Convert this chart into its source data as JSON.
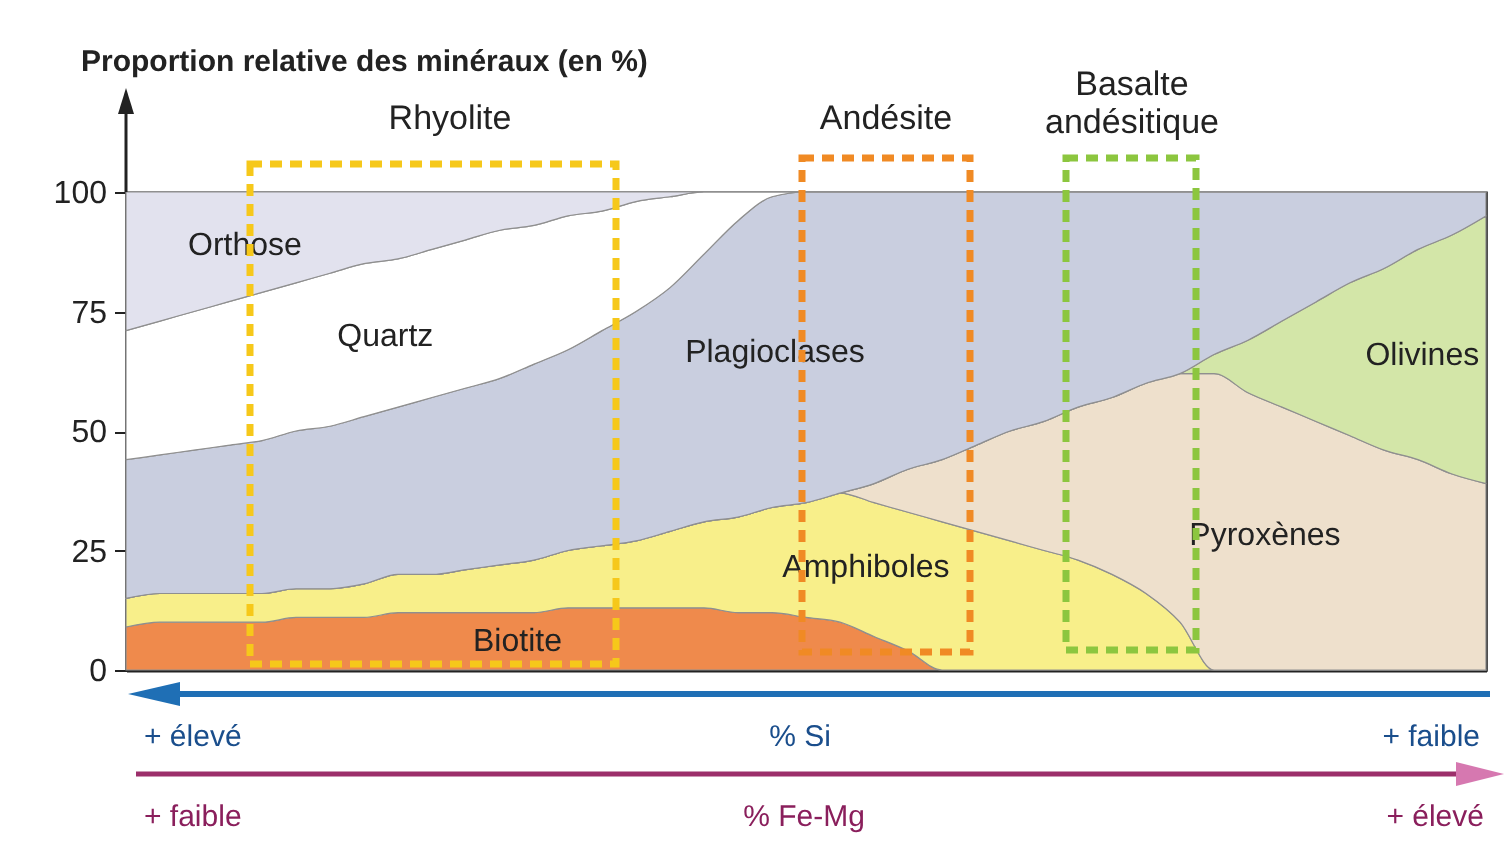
{
  "chart_data": {
    "type": "area",
    "stacked": true,
    "ylabel": "Proportion relative des minéraux (en %)",
    "categories": [
      null,
      null,
      null,
      null,
      null,
      null,
      null,
      null,
      null,
      null,
      null,
      null,
      null,
      null,
      null,
      null,
      null,
      null,
      null,
      null,
      null,
      null,
      null,
      null,
      null,
      null,
      null,
      null,
      null,
      null,
      null,
      null,
      null,
      null,
      null,
      null,
      null,
      null,
      null,
      null,
      null
    ],
    "series": [
      {
        "name": "Biotite",
        "color": "#ef8a4c",
        "values": [
          9,
          10,
          10,
          10,
          10,
          11,
          11,
          11,
          12,
          12,
          12,
          12,
          12,
          13,
          13,
          13,
          13,
          13,
          12,
          12,
          11,
          10,
          7,
          4,
          0,
          0,
          0,
          0,
          0,
          0,
          0,
          0,
          0,
          0,
          0,
          0,
          0,
          0,
          0,
          0,
          0
        ]
      },
      {
        "name": "Amphiboles",
        "color": "#f8ef8a",
        "values": [
          6,
          6,
          6,
          6,
          6,
          6,
          6,
          7,
          8,
          8,
          9,
          10,
          11,
          12,
          13,
          14,
          16,
          18,
          20,
          22,
          24,
          27,
          28,
          29,
          31,
          29,
          27,
          25,
          23,
          20,
          16,
          10,
          0,
          0,
          0,
          0,
          0,
          0,
          0,
          0,
          0
        ]
      },
      {
        "name": "Pyroxènes",
        "color": "#eee0cc",
        "values": [
          0,
          0,
          0,
          0,
          0,
          0,
          0,
          0,
          0,
          0,
          0,
          0,
          0,
          0,
          0,
          0,
          0,
          0,
          0,
          0,
          0,
          0,
          4,
          9,
          13,
          18,
          23,
          27,
          32,
          37,
          44,
          52,
          62,
          58,
          55,
          52,
          49,
          46,
          44,
          41,
          39
        ]
      },
      {
        "name": "Olivines",
        "color": "#d3e6a8",
        "values": [
          0,
          0,
          0,
          0,
          0,
          0,
          0,
          0,
          0,
          0,
          0,
          0,
          0,
          0,
          0,
          0,
          0,
          0,
          0,
          0,
          0,
          0,
          0,
          0,
          0,
          0,
          0,
          0,
          0,
          0,
          0,
          0,
          4,
          11,
          18,
          25,
          32,
          38,
          44,
          50,
          56
        ]
      },
      {
        "name": "Plagioclases",
        "color": "#c9cedf",
        "values": [
          29,
          29,
          30,
          31,
          32,
          33,
          34,
          35,
          35,
          37,
          38,
          39,
          41,
          42,
          45,
          48,
          51,
          56,
          62,
          65,
          65,
          63,
          61,
          58,
          56,
          53,
          50,
          48,
          45,
          43,
          40,
          38,
          34,
          31,
          27,
          23,
          19,
          16,
          12,
          9,
          5
        ]
      },
      {
        "name": "Quartz",
        "color": "#ffffff",
        "values": [
          27,
          28,
          29,
          30,
          31,
          31,
          32,
          32,
          31,
          31,
          31,
          31,
          29,
          28,
          25,
          23,
          19,
          13,
          6,
          1,
          0,
          0,
          0,
          0,
          0,
          0,
          0,
          0,
          0,
          0,
          0,
          0,
          0,
          0,
          0,
          0,
          0,
          0,
          0,
          0,
          0
        ]
      },
      {
        "name": "Orthose",
        "color": "#e2e2ee",
        "values": [
          29,
          27,
          25,
          23,
          21,
          19,
          17,
          15,
          14,
          12,
          10,
          8,
          7,
          5,
          4,
          2,
          1,
          0,
          0,
          0,
          0,
          0,
          0,
          0,
          0,
          0,
          0,
          0,
          0,
          0,
          0,
          0,
          0,
          0,
          0,
          0,
          0,
          0,
          0,
          0,
          0
        ]
      }
    ],
    "ylim": [
      0,
      100
    ],
    "yticks": [
      0,
      25,
      50,
      75,
      100
    ],
    "annotations": [
      "Rhyolite",
      "Andésite",
      "Basalte andésitique",
      "+ élevé",
      "% Si",
      "+ faible",
      "+ faible",
      "% Fe-Mg",
      "+ élevé"
    ]
  }
}
